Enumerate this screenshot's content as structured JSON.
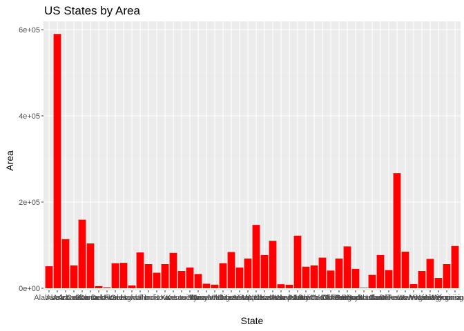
{
  "chart_data": {
    "type": "bar",
    "title": "US States by Area",
    "xlabel": "State",
    "ylabel": "Area",
    "ylim": [
      0,
      600000
    ],
    "yticks": [
      {
        "value": 0,
        "label": "0e+00"
      },
      {
        "value": 200000,
        "label": "2e+05"
      },
      {
        "value": 400000,
        "label": "4e+05"
      },
      {
        "value": 600000,
        "label": "6e+05"
      }
    ],
    "grid": true,
    "legend": "none",
    "bar_color": "#ff0000",
    "panel_color": "#ebebeb",
    "categories": [
      "Alabama",
      "Alaska",
      "Arizona",
      "Arkansas",
      "California",
      "Colorado",
      "Connecticut",
      "Delaware",
      "Florida",
      "Georgia",
      "Hawaii",
      "Idaho",
      "Illinois",
      "Indiana",
      "Iowa",
      "Kansas",
      "Kentucky",
      "Louisiana",
      "Maine",
      "Maryland",
      "Massachusetts",
      "Michigan",
      "Minnesota",
      "Mississippi",
      "Missouri",
      "Montana",
      "Nebraska",
      "Nevada",
      "New Hampshire",
      "New Jersey",
      "New Mexico",
      "New York",
      "North Carolina",
      "North Dakota",
      "Ohio",
      "Oklahoma",
      "Oregon",
      "Pennsylvania",
      "Rhode Island",
      "South Carolina",
      "South Dakota",
      "Tennessee",
      "Texas",
      "Utah",
      "Vermont",
      "Virginia",
      "Washington",
      "West Virginia",
      "Wisconsin",
      "Wyoming"
    ],
    "values": [
      51000,
      590000,
      114000,
      53000,
      159000,
      104000,
      5000,
      2000,
      58000,
      59000,
      6400,
      83000,
      56000,
      36000,
      56000,
      82000,
      40000,
      48000,
      33000,
      10500,
      8300,
      58000,
      84000,
      48000,
      69000,
      147000,
      77000,
      110000,
      9300,
      8200,
      122000,
      50000,
      53000,
      71000,
      41000,
      69000,
      97000,
      45000,
      1200,
      31000,
      77000,
      42000,
      267000,
      85000,
      9600,
      40000,
      68000,
      24000,
      56000,
      98000
    ]
  }
}
